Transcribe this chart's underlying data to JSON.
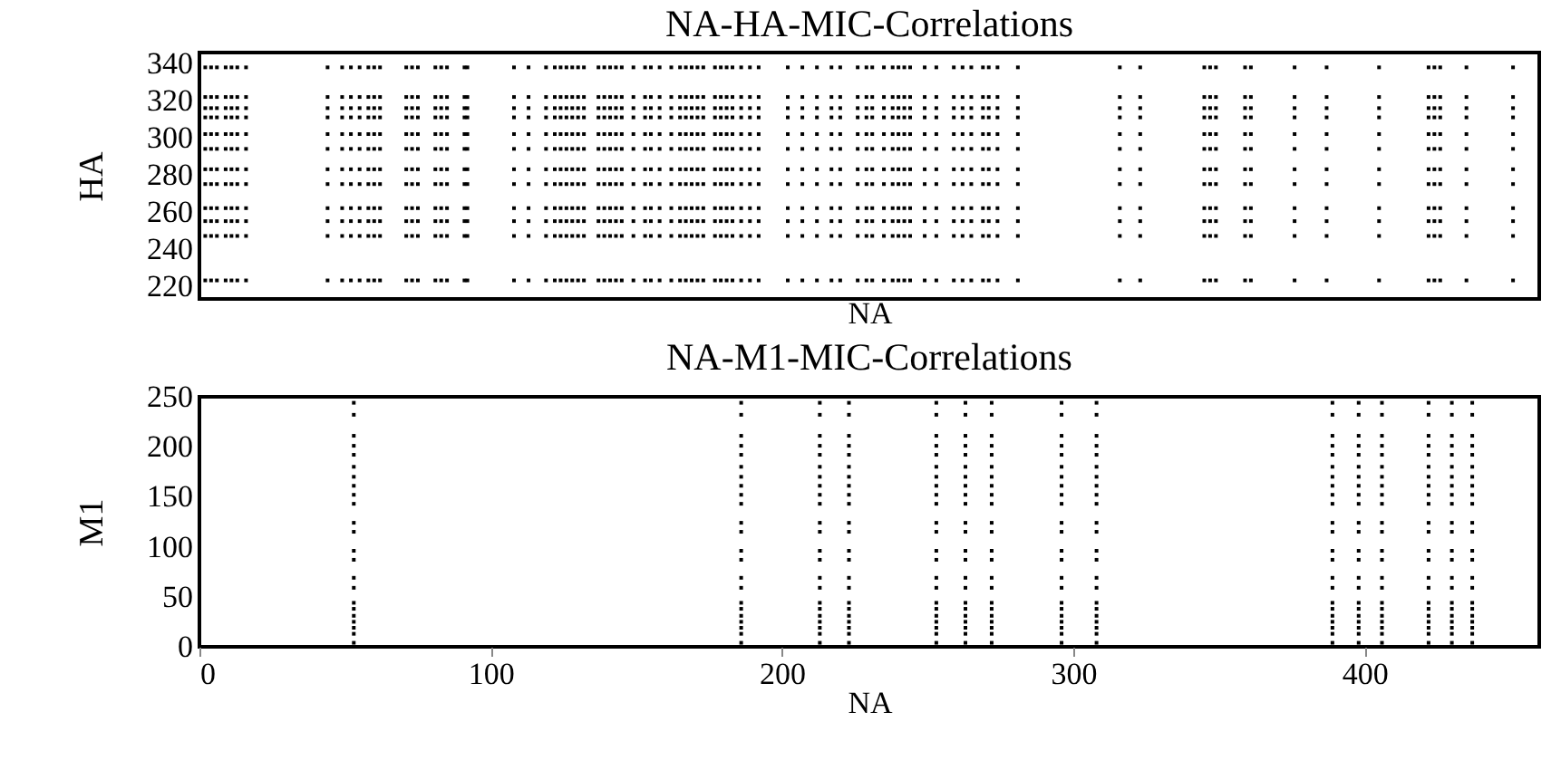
{
  "chart_data": [
    {
      "type": "scatter",
      "title": "NA-HA-MIC-Correlations",
      "xlabel": "NA",
      "ylabel": "HA",
      "xlim": [
        0,
        460
      ],
      "ylim": [
        213,
        346
      ],
      "yticks": [
        220,
        240,
        260,
        280,
        300,
        320,
        340
      ],
      "tick_labels": "y",
      "grid": false,
      "legend": false,
      "marker": "square",
      "x": [
        2,
        4,
        6,
        9,
        11,
        13,
        16,
        44,
        49,
        52,
        55,
        58,
        60,
        62,
        71,
        73,
        75,
        81,
        83,
        85,
        91,
        92,
        108,
        113,
        119,
        122,
        124,
        126,
        128,
        130,
        132,
        137,
        139,
        141,
        143,
        145,
        149,
        153,
        155,
        158,
        162,
        165,
        167,
        169,
        171,
        173,
        177,
        179,
        181,
        183,
        186,
        189,
        192,
        202,
        207,
        212,
        217,
        220,
        226,
        229,
        231,
        235,
        238,
        240,
        242,
        244,
        249,
        253,
        259,
        262,
        265,
        269,
        271,
        274,
        281,
        316,
        323,
        345,
        347,
        349,
        359,
        361,
        376,
        387,
        405,
        422,
        424,
        426,
        435,
        451
      ],
      "series": [
        {
          "color": "#000000",
          "values": [
            338,
            338,
            338,
            338,
            338,
            338,
            338,
            338,
            338,
            338,
            338,
            338,
            338,
            338,
            338,
            338,
            338,
            338,
            338,
            338,
            338,
            338,
            338,
            338,
            338,
            338,
            338,
            338,
            338,
            338,
            338,
            338,
            338,
            338,
            338,
            338,
            338,
            338,
            338,
            338,
            338,
            338,
            338,
            338,
            338,
            338,
            338,
            338,
            338,
            338,
            338,
            338,
            338,
            338,
            338,
            338,
            338,
            338,
            338,
            338,
            338,
            338,
            338,
            338,
            338,
            338,
            338,
            338,
            338,
            338,
            338,
            338,
            338,
            338,
            338,
            338,
            338,
            338,
            338,
            338,
            338,
            338,
            338,
            338,
            338,
            338,
            338,
            338,
            338,
            338
          ]
        },
        {
          "color": "#000000",
          "values": [
            322,
            322,
            322,
            322,
            322,
            322,
            322,
            322,
            322,
            322,
            322,
            322,
            322,
            322,
            322,
            322,
            322,
            322,
            322,
            322,
            322,
            322,
            322,
            322,
            322,
            322,
            322,
            322,
            322,
            322,
            322,
            322,
            322,
            322,
            322,
            322,
            322,
            322,
            322,
            322,
            322,
            322,
            322,
            322,
            322,
            322,
            322,
            322,
            322,
            322,
            322,
            322,
            322,
            322,
            322,
            322,
            322,
            322,
            322,
            322,
            322,
            322,
            322,
            322,
            322,
            322,
            322,
            322,
            322,
            322,
            322,
            322,
            322,
            322,
            322,
            322,
            322,
            322,
            322,
            322,
            322,
            322,
            322,
            322,
            322,
            322,
            322,
            322,
            322,
            322
          ]
        },
        {
          "color": "#000000",
          "values": [
            316,
            316,
            316,
            316,
            316,
            316,
            316,
            316,
            316,
            316,
            316,
            316,
            316,
            316,
            316,
            316,
            316,
            316,
            316,
            316,
            316,
            316,
            316,
            316,
            316,
            316,
            316,
            316,
            316,
            316,
            316,
            316,
            316,
            316,
            316,
            316,
            316,
            316,
            316,
            316,
            316,
            316,
            316,
            316,
            316,
            316,
            316,
            316,
            316,
            316,
            316,
            316,
            316,
            316,
            316,
            316,
            316,
            316,
            316,
            316,
            316,
            316,
            316,
            316,
            316,
            316,
            316,
            316,
            316,
            316,
            316,
            316,
            316,
            316,
            316,
            316,
            316,
            316,
            316,
            316,
            316,
            316,
            316,
            316,
            316,
            316,
            316,
            316,
            316,
            316
          ]
        },
        {
          "color": "#000000",
          "values": [
            311,
            311,
            311,
            311,
            311,
            311,
            311,
            311,
            311,
            311,
            311,
            311,
            311,
            311,
            311,
            311,
            311,
            311,
            311,
            311,
            311,
            311,
            311,
            311,
            311,
            311,
            311,
            311,
            311,
            311,
            311,
            311,
            311,
            311,
            311,
            311,
            311,
            311,
            311,
            311,
            311,
            311,
            311,
            311,
            311,
            311,
            311,
            311,
            311,
            311,
            311,
            311,
            311,
            311,
            311,
            311,
            311,
            311,
            311,
            311,
            311,
            311,
            311,
            311,
            311,
            311,
            311,
            311,
            311,
            311,
            311,
            311,
            311,
            311,
            311,
            311,
            311,
            311,
            311,
            311,
            311,
            311,
            311,
            311,
            311,
            311,
            311,
            311,
            311,
            311
          ]
        },
        {
          "color": "#000000",
          "values": [
            302,
            302,
            302,
            302,
            302,
            302,
            302,
            302,
            302,
            302,
            302,
            302,
            302,
            302,
            302,
            302,
            302,
            302,
            302,
            302,
            302,
            302,
            302,
            302,
            302,
            302,
            302,
            302,
            302,
            302,
            302,
            302,
            302,
            302,
            302,
            302,
            302,
            302,
            302,
            302,
            302,
            302,
            302,
            302,
            302,
            302,
            302,
            302,
            302,
            302,
            302,
            302,
            302,
            302,
            302,
            302,
            302,
            302,
            302,
            302,
            302,
            302,
            302,
            302,
            302,
            302,
            302,
            302,
            302,
            302,
            302,
            302,
            302,
            302,
            302,
            302,
            302,
            302,
            302,
            302,
            302,
            302,
            302,
            302,
            302,
            302,
            302,
            302,
            302,
            302
          ]
        },
        {
          "color": "#000000",
          "values": [
            294,
            294,
            294,
            294,
            294,
            294,
            294,
            294,
            294,
            294,
            294,
            294,
            294,
            294,
            294,
            294,
            294,
            294,
            294,
            294,
            294,
            294,
            294,
            294,
            294,
            294,
            294,
            294,
            294,
            294,
            294,
            294,
            294,
            294,
            294,
            294,
            294,
            294,
            294,
            294,
            294,
            294,
            294,
            294,
            294,
            294,
            294,
            294,
            294,
            294,
            294,
            294,
            294,
            294,
            294,
            294,
            294,
            294,
            294,
            294,
            294,
            294,
            294,
            294,
            294,
            294,
            294,
            294,
            294,
            294,
            294,
            294,
            294,
            294,
            294,
            294,
            294,
            294,
            294,
            294,
            294,
            294,
            294,
            294,
            294,
            294,
            294,
            294,
            294,
            294
          ]
        },
        {
          "color": "#000000",
          "values": [
            283,
            283,
            283,
            283,
            283,
            283,
            283,
            283,
            283,
            283,
            283,
            283,
            283,
            283,
            283,
            283,
            283,
            283,
            283,
            283,
            283,
            283,
            283,
            283,
            283,
            283,
            283,
            283,
            283,
            283,
            283,
            283,
            283,
            283,
            283,
            283,
            283,
            283,
            283,
            283,
            283,
            283,
            283,
            283,
            283,
            283,
            283,
            283,
            283,
            283,
            283,
            283,
            283,
            283,
            283,
            283,
            283,
            283,
            283,
            283,
            283,
            283,
            283,
            283,
            283,
            283,
            283,
            283,
            283,
            283,
            283,
            283,
            283,
            283,
            283,
            283,
            283,
            283,
            283,
            283,
            283,
            283,
            283,
            283,
            283,
            283,
            283,
            283,
            283,
            283
          ]
        },
        {
          "color": "#000000",
          "values": [
            275,
            275,
            275,
            275,
            275,
            275,
            275,
            275,
            275,
            275,
            275,
            275,
            275,
            275,
            275,
            275,
            275,
            275,
            275,
            275,
            275,
            275,
            275,
            275,
            275,
            275,
            275,
            275,
            275,
            275,
            275,
            275,
            275,
            275,
            275,
            275,
            275,
            275,
            275,
            275,
            275,
            275,
            275,
            275,
            275,
            275,
            275,
            275,
            275,
            275,
            275,
            275,
            275,
            275,
            275,
            275,
            275,
            275,
            275,
            275,
            275,
            275,
            275,
            275,
            275,
            275,
            275,
            275,
            275,
            275,
            275,
            275,
            275,
            275,
            275,
            275,
            275,
            275,
            275,
            275,
            275,
            275,
            275,
            275,
            275,
            275,
            275,
            275,
            275,
            275
          ]
        },
        {
          "color": "#000000",
          "values": [
            262,
            262,
            262,
            262,
            262,
            262,
            262,
            262,
            262,
            262,
            262,
            262,
            262,
            262,
            262,
            262,
            262,
            262,
            262,
            262,
            262,
            262,
            262,
            262,
            262,
            262,
            262,
            262,
            262,
            262,
            262,
            262,
            262,
            262,
            262,
            262,
            262,
            262,
            262,
            262,
            262,
            262,
            262,
            262,
            262,
            262,
            262,
            262,
            262,
            262,
            262,
            262,
            262,
            262,
            262,
            262,
            262,
            262,
            262,
            262,
            262,
            262,
            262,
            262,
            262,
            262,
            262,
            262,
            262,
            262,
            262,
            262,
            262,
            262,
            262,
            262,
            262,
            262,
            262,
            262,
            262,
            262,
            262,
            262,
            262,
            262,
            262,
            262,
            262,
            262
          ]
        },
        {
          "color": "#000000",
          "values": [
            255,
            255,
            255,
            255,
            255,
            255,
            255,
            255,
            255,
            255,
            255,
            255,
            255,
            255,
            255,
            255,
            255,
            255,
            255,
            255,
            255,
            255,
            255,
            255,
            255,
            255,
            255,
            255,
            255,
            255,
            255,
            255,
            255,
            255,
            255,
            255,
            255,
            255,
            255,
            255,
            255,
            255,
            255,
            255,
            255,
            255,
            255,
            255,
            255,
            255,
            255,
            255,
            255,
            255,
            255,
            255,
            255,
            255,
            255,
            255,
            255,
            255,
            255,
            255,
            255,
            255,
            255,
            255,
            255,
            255,
            255,
            255,
            255,
            255,
            255,
            255,
            255,
            255,
            255,
            255,
            255,
            255,
            255,
            255,
            255,
            255,
            255,
            255,
            255,
            255
          ]
        },
        {
          "color": "#000000",
          "values": [
            247,
            247,
            247,
            247,
            247,
            247,
            247,
            247,
            247,
            247,
            247,
            247,
            247,
            247,
            247,
            247,
            247,
            247,
            247,
            247,
            247,
            247,
            247,
            247,
            247,
            247,
            247,
            247,
            247,
            247,
            247,
            247,
            247,
            247,
            247,
            247,
            247,
            247,
            247,
            247,
            247,
            247,
            247,
            247,
            247,
            247,
            247,
            247,
            247,
            247,
            247,
            247,
            247,
            247,
            247,
            247,
            247,
            247,
            247,
            247,
            247,
            247,
            247,
            247,
            247,
            247,
            247,
            247,
            247,
            247,
            247,
            247,
            247,
            247,
            247,
            247,
            247,
            247,
            247,
            247,
            247,
            247,
            247,
            247,
            247,
            247,
            247,
            247,
            247,
            247
          ]
        },
        {
          "color": "#000000",
          "values": [
            223,
            223,
            223,
            223,
            223,
            223,
            223,
            223,
            223,
            223,
            223,
            223,
            223,
            223,
            223,
            223,
            223,
            223,
            223,
            223,
            223,
            223,
            223,
            223,
            223,
            223,
            223,
            223,
            223,
            223,
            223,
            223,
            223,
            223,
            223,
            223,
            223,
            223,
            223,
            223,
            223,
            223,
            223,
            223,
            223,
            223,
            223,
            223,
            223,
            223,
            223,
            223,
            223,
            223,
            223,
            223,
            223,
            223,
            223,
            223,
            223,
            223,
            223,
            223,
            223,
            223,
            223,
            223,
            223,
            223,
            223,
            223,
            223,
            223,
            223,
            223,
            223,
            223,
            223,
            223,
            223,
            223,
            223,
            223,
            223,
            223,
            223,
            223,
            223,
            223
          ]
        }
      ]
    },
    {
      "type": "scatter",
      "title": "NA-M1-MIC-Correlations",
      "xlabel": "NA",
      "ylabel": "M1",
      "xlim": [
        0,
        460
      ],
      "ylim": [
        0,
        250
      ],
      "xticks": [
        0,
        100,
        200,
        300,
        400
      ],
      "yticks": [
        0,
        50,
        100,
        150,
        200,
        250
      ],
      "grid": false,
      "legend": false,
      "marker": "square",
      "x": [
        53,
        186,
        213,
        223,
        253,
        263,
        272,
        296,
        308,
        389,
        398,
        406,
        422,
        430,
        437
      ],
      "series": [
        {
          "color": "#000000",
          "values": [
            244,
            244,
            244,
            244,
            244,
            244,
            244,
            244,
            244,
            244,
            244,
            244,
            244,
            244,
            244
          ]
        },
        {
          "color": "#000000",
          "values": [
            232,
            232,
            232,
            232,
            232,
            232,
            232,
            232,
            232,
            232,
            232,
            232,
            232,
            232,
            232
          ]
        },
        {
          "color": "#000000",
          "values": [
            211,
            211,
            211,
            211,
            211,
            211,
            211,
            211,
            211,
            211,
            211,
            211,
            211,
            211,
            211
          ]
        },
        {
          "color": "#000000",
          "values": [
            201,
            201,
            201,
            201,
            201,
            201,
            201,
            201,
            201,
            201,
            201,
            201,
            201,
            201,
            201
          ]
        },
        {
          "color": "#000000",
          "values": [
            192,
            192,
            192,
            192,
            192,
            192,
            192,
            192,
            192,
            192,
            192,
            192,
            192,
            192,
            192
          ]
        },
        {
          "color": "#000000",
          "values": [
            180,
            180,
            180,
            180,
            180,
            180,
            180,
            180,
            180,
            180,
            180,
            180,
            180,
            180,
            180
          ]
        },
        {
          "color": "#000000",
          "values": [
            170,
            170,
            170,
            170,
            170,
            170,
            170,
            170,
            170,
            170,
            170,
            170,
            170,
            170,
            170
          ]
        },
        {
          "color": "#000000",
          "values": [
            161,
            161,
            161,
            161,
            161,
            161,
            161,
            161,
            161,
            161,
            161,
            161,
            161,
            161,
            161
          ]
        },
        {
          "color": "#000000",
          "values": [
            152,
            152,
            152,
            152,
            152,
            152,
            152,
            152,
            152,
            152,
            152,
            152,
            152,
            152,
            152
          ]
        },
        {
          "color": "#000000",
          "values": [
            143,
            143,
            143,
            143,
            143,
            143,
            143,
            143,
            143,
            143,
            143,
            143,
            143,
            143,
            143
          ]
        },
        {
          "color": "#000000",
          "values": [
            124,
            124,
            124,
            124,
            124,
            124,
            124,
            124,
            124,
            124,
            124,
            124,
            124,
            124,
            124
          ]
        },
        {
          "color": "#000000",
          "values": [
            115,
            115,
            115,
            115,
            115,
            115,
            115,
            115,
            115,
            115,
            115,
            115,
            115,
            115,
            115
          ]
        },
        {
          "color": "#000000",
          "values": [
            96,
            96,
            96,
            96,
            96,
            96,
            96,
            96,
            96,
            96,
            96,
            96,
            96,
            96,
            96
          ]
        },
        {
          "color": "#000000",
          "values": [
            87,
            87,
            87,
            87,
            87,
            87,
            87,
            87,
            87,
            87,
            87,
            87,
            87,
            87,
            87
          ]
        },
        {
          "color": "#000000",
          "values": [
            69,
            69,
            69,
            69,
            69,
            69,
            69,
            69,
            69,
            69,
            69,
            69,
            69,
            69,
            69
          ]
        },
        {
          "color": "#000000",
          "values": [
            59,
            59,
            59,
            59,
            59,
            59,
            59,
            59,
            59,
            59,
            59,
            59,
            59,
            59,
            59
          ]
        },
        {
          "color": "#000000",
          "values": [
            44,
            44,
            44,
            44,
            44,
            44,
            44,
            44,
            44,
            44,
            44,
            44,
            44,
            44,
            44
          ]
        },
        {
          "color": "#000000",
          "values": [
            38,
            38,
            38,
            38,
            38,
            38,
            38,
            38,
            38,
            38,
            38,
            38,
            38,
            38,
            38
          ]
        },
        {
          "color": "#000000",
          "values": [
            31,
            31,
            31,
            31,
            31,
            31,
            31,
            31,
            31,
            31,
            31,
            31,
            31,
            31,
            31
          ]
        },
        {
          "color": "#000000",
          "values": [
            25,
            25,
            25,
            25,
            25,
            25,
            25,
            25,
            25,
            25,
            25,
            25,
            25,
            25,
            25
          ]
        },
        {
          "color": "#000000",
          "values": [
            19,
            19,
            19,
            19,
            19,
            19,
            19,
            19,
            19,
            19,
            19,
            19,
            19,
            19,
            19
          ]
        },
        {
          "color": "#000000",
          "values": [
            13,
            13,
            13,
            13,
            13,
            13,
            13,
            13,
            13,
            13,
            13,
            13,
            13,
            13,
            13
          ]
        },
        {
          "color": "#000000",
          "values": [
            4,
            4,
            4,
            4,
            4,
            4,
            4,
            4,
            4,
            4,
            4,
            4,
            4,
            4,
            4
          ]
        }
      ]
    }
  ]
}
